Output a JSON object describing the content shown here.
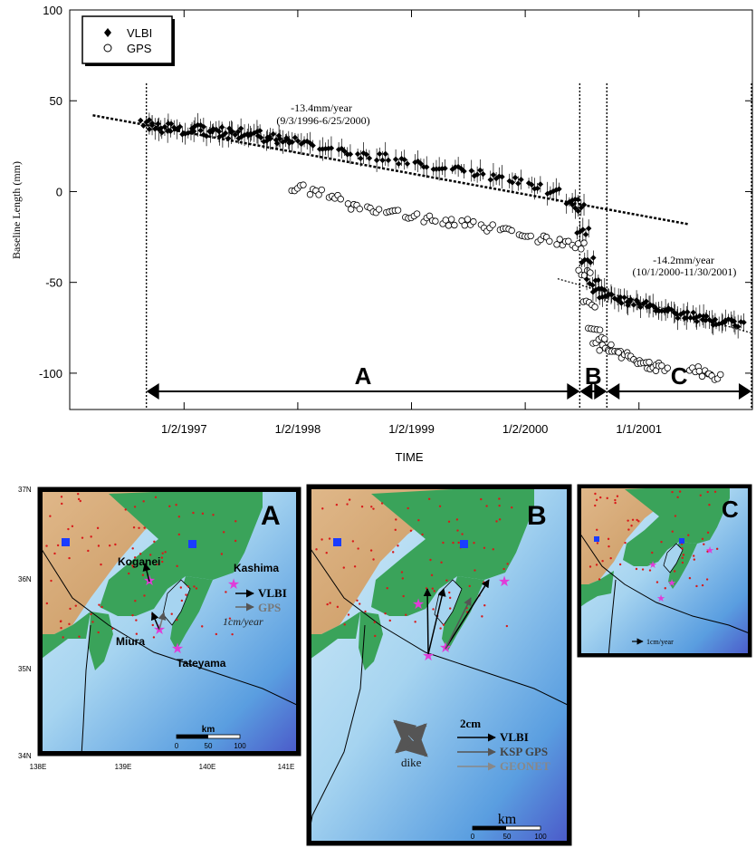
{
  "chart_data": {
    "type": "scatter",
    "xlabel": "TIME",
    "ylabel": "Baseline Length (mm)",
    "x_ticks": [
      "1/2/1997",
      "1/2/1998",
      "1/2/1999",
      "1/2/2000",
      "1/1/2001"
    ],
    "y_ticks": [
      "100",
      "50",
      "0",
      "-50",
      "-100"
    ],
    "ylim": [
      -120,
      100
    ],
    "xlim": [
      "1996-01-01",
      "2001-12-31"
    ],
    "legend": {
      "position": "top-left",
      "entries": [
        "VLBI",
        "GPS"
      ]
    },
    "series": [
      {
        "name": "VLBI",
        "marker": "filled-diamond",
        "color": "#000000",
        "points": [
          [
            "1996-09-03",
            38
          ],
          [
            "1996-10-01",
            36
          ],
          [
            "1996-11-01",
            34
          ],
          [
            "1996-12-01",
            36
          ],
          [
            "1997-01-15",
            33
          ],
          [
            "1997-02-15",
            35
          ],
          [
            "1997-03-15",
            32
          ],
          [
            "1997-04-15",
            34
          ],
          [
            "1997-05-15",
            31
          ],
          [
            "1997-06-15",
            33
          ],
          [
            "1997-07-15",
            30
          ],
          [
            "1997-08-15",
            32
          ],
          [
            "1997-09-15",
            29
          ],
          [
            "1997-10-15",
            30
          ],
          [
            "1997-11-15",
            28
          ],
          [
            "1997-12-15",
            28
          ],
          [
            "1998-02-01",
            26
          ],
          [
            "1998-04-01",
            25
          ],
          [
            "1998-06-01",
            22
          ],
          [
            "1998-08-01",
            20
          ],
          [
            "1998-10-01",
            19
          ],
          [
            "1998-12-01",
            17
          ],
          [
            "1999-02-01",
            15
          ],
          [
            "1999-04-01",
            14
          ],
          [
            "1999-06-01",
            12
          ],
          [
            "1999-08-01",
            10
          ],
          [
            "1999-10-01",
            8
          ],
          [
            "1999-12-01",
            6
          ],
          [
            "2000-02-01",
            3
          ],
          [
            "2000-04-01",
            0
          ],
          [
            "2000-06-01",
            -6
          ],
          [
            "2000-06-20",
            -9
          ],
          [
            "2000-07-05",
            -22
          ],
          [
            "2000-07-20",
            -38
          ],
          [
            "2000-08-05",
            -50
          ],
          [
            "2000-08-25",
            -55
          ],
          [
            "2000-09-15",
            -57
          ],
          [
            "2000-10-15",
            -58
          ],
          [
            "2000-11-15",
            -60
          ],
          [
            "2000-12-15",
            -61
          ],
          [
            "2001-01-15",
            -62
          ],
          [
            "2001-02-15",
            -64
          ],
          [
            "2001-03-15",
            -64
          ],
          [
            "2001-04-15",
            -66
          ],
          [
            "2001-05-15",
            -68
          ],
          [
            "2001-06-15",
            -68
          ],
          [
            "2001-07-15",
            -70
          ],
          [
            "2001-08-15",
            -70
          ],
          [
            "2001-09-15",
            -72
          ],
          [
            "2001-10-15",
            -72
          ],
          [
            "2001-11-15",
            -73
          ]
        ]
      },
      {
        "name": "GPS",
        "marker": "open-circle",
        "color": "#000000",
        "points": [
          [
            "1998-01-01",
            2
          ],
          [
            "1998-03-01",
            0
          ],
          [
            "1998-05-01",
            -3
          ],
          [
            "1998-07-01",
            -8
          ],
          [
            "1998-09-01",
            -10
          ],
          [
            "1998-11-01",
            -12
          ],
          [
            "1999-01-01",
            -13
          ],
          [
            "1999-03-01",
            -15
          ],
          [
            "1999-05-01",
            -17
          ],
          [
            "1999-07-01",
            -17
          ],
          [
            "1999-09-01",
            -20
          ],
          [
            "1999-11-01",
            -22
          ],
          [
            "2000-01-01",
            -23
          ],
          [
            "2000-03-01",
            -26
          ],
          [
            "2000-05-01",
            -28
          ],
          [
            "2000-06-20",
            -30
          ],
          [
            "2000-07-10",
            -45
          ],
          [
            "2000-07-25",
            -62
          ],
          [
            "2000-08-10",
            -75
          ],
          [
            "2000-08-25",
            -82
          ],
          [
            "2000-09-15",
            -86
          ],
          [
            "2000-10-15",
            -88
          ],
          [
            "2000-11-15",
            -90
          ],
          [
            "2000-12-15",
            -92
          ],
          [
            "2001-01-15",
            -95
          ],
          [
            "2001-02-15",
            -96
          ],
          [
            "2001-03-15",
            -97
          ],
          [
            "2001-07-01",
            -98
          ],
          [
            "2001-08-01",
            -100
          ],
          [
            "2001-09-01",
            -102
          ]
        ]
      }
    ],
    "annotations": {
      "rate1_a": "-13.4mm/year",
      "rate1_b": "(9/3/1996-6/25/2000)",
      "rate2_a": "-14.2mm/year",
      "rate2_b": "(10/1/2000-11/30/2001)"
    },
    "trend_lines": [
      {
        "from": [
          "1996-03-15",
          42
        ],
        "to": [
          "2001-06-10",
          -18
        ]
      },
      {
        "from": [
          "2000-04-15",
          -48
        ],
        "to": [
          "2001-12-31",
          -78
        ]
      }
    ],
    "periods": [
      {
        "label": "A",
        "start": "1996-09-03",
        "end": "2000-06-25"
      },
      {
        "label": "B",
        "start": "2000-06-25",
        "end": "2000-09-20"
      },
      {
        "label": "C",
        "start": "2000-09-20",
        "end": "2001-12-28"
      }
    ]
  },
  "maps": {
    "a": {
      "panel_label": "A",
      "lat_labels": [
        "37N",
        "36N",
        "35N",
        "34N"
      ],
      "lon_labels": [
        "138E",
        "139E",
        "140E",
        "141E"
      ],
      "places": [
        "Kashima",
        "Koganei",
        "Miura",
        "Tateyama"
      ],
      "legend": [
        "VLBI",
        "GPS",
        "1cm/year"
      ],
      "scale_title": "km",
      "scale_ticks": [
        "0",
        "50",
        "100"
      ]
    },
    "b": {
      "panel_label": "B",
      "legend": [
        "2cm",
        "VLBI",
        "KSP GPS",
        "GEONET"
      ],
      "dike": "dike",
      "scale_title": "km",
      "scale_ticks": [
        "0",
        "50",
        "100"
      ]
    },
    "c": {
      "panel_label": "C",
      "legend": [
        "1cm/year"
      ]
    }
  },
  "colors": {
    "land_low": "#3aa35a",
    "land_high": "#d8ae7a",
    "sea_shallow": "#a6d4f0",
    "sea_deep": "#3a5ccc",
    "station_vlbi": "#1a3cff",
    "station_star": "#e03cd8",
    "gps_dots": "#d81a1a"
  }
}
